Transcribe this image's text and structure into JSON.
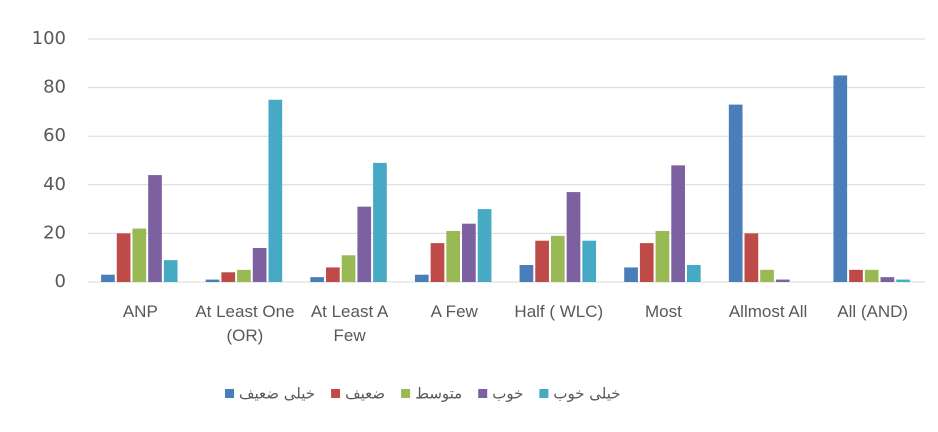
{
  "chart_data": {
    "type": "bar",
    "categories": [
      "ANP",
      "At Least One (OR)",
      "At Least A Few",
      "A Few",
      "Half ( WLC)",
      "Most",
      "Allmost All",
      "All (AND)"
    ],
    "series": [
      {
        "name": "خیلی ضعیف",
        "color": "#4a7ebb",
        "values": [
          3,
          1,
          2,
          3,
          7,
          6,
          73,
          85
        ]
      },
      {
        "name": "ضعیف",
        "color": "#be4b48",
        "values": [
          20,
          4,
          6,
          16,
          17,
          16,
          20,
          5
        ]
      },
      {
        "name": "متوسط",
        "color": "#98b954",
        "values": [
          22,
          5,
          11,
          21,
          19,
          21,
          5,
          5
        ]
      },
      {
        "name": "خوب",
        "color": "#7d60a0",
        "values": [
          44,
          14,
          31,
          24,
          37,
          48,
          1,
          2
        ]
      },
      {
        "name": "خیلی خوب",
        "color": "#46aac5",
        "values": [
          9,
          75,
          49,
          30,
          17,
          7,
          0,
          1
        ]
      }
    ],
    "ylim": [
      0,
      100
    ],
    "yticks": [
      0,
      20,
      40,
      60,
      80,
      100
    ],
    "grid": true
  }
}
